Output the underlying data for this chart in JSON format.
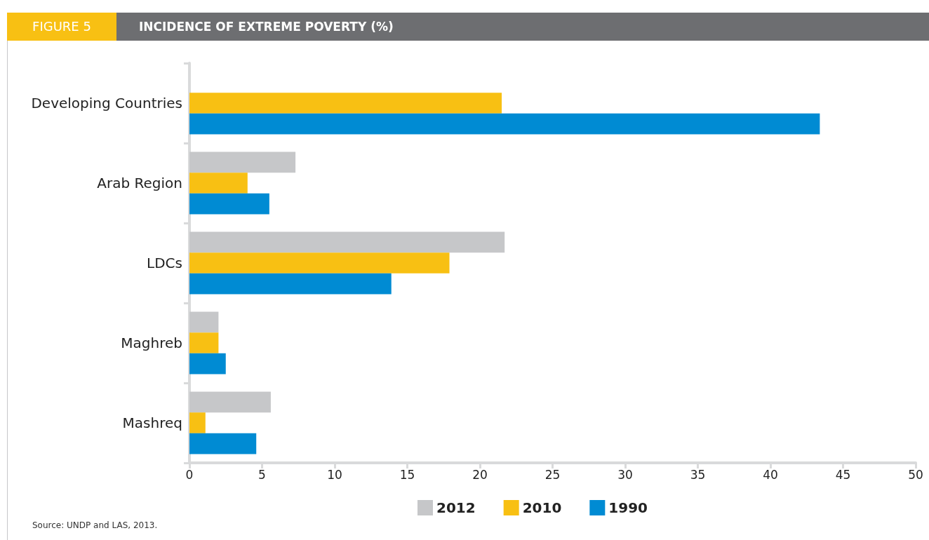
{
  "chart_data": {
    "type": "bar",
    "orientation": "horizontal",
    "title": "INCIDENCE OF EXTREME POVERTY (%)",
    "annotations": [
      "FIGURE 5",
      "Source: UNDP and LAS, 2013."
    ],
    "categories": [
      "Developing Countries",
      "Arab Region",
      "LDCs",
      "Maghreb",
      "Mashreq"
    ],
    "series": [
      {
        "name": "2012",
        "color": "#c6c7c9",
        "values": [
          null,
          7.3,
          21.7,
          2.0,
          5.6
        ]
      },
      {
        "name": "2010",
        "color": "#f8c013",
        "values": [
          21.5,
          4.0,
          17.9,
          2.0,
          1.1
        ]
      },
      {
        "name": "1990",
        "color": "#008bd3",
        "values": [
          43.4,
          5.5,
          13.9,
          2.5,
          4.6
        ]
      }
    ],
    "xlim": [
      0,
      50
    ],
    "xticks": [
      0,
      5,
      10,
      15,
      20,
      25,
      30,
      35,
      40,
      45,
      50
    ],
    "grid": false,
    "legend": "bottom"
  }
}
